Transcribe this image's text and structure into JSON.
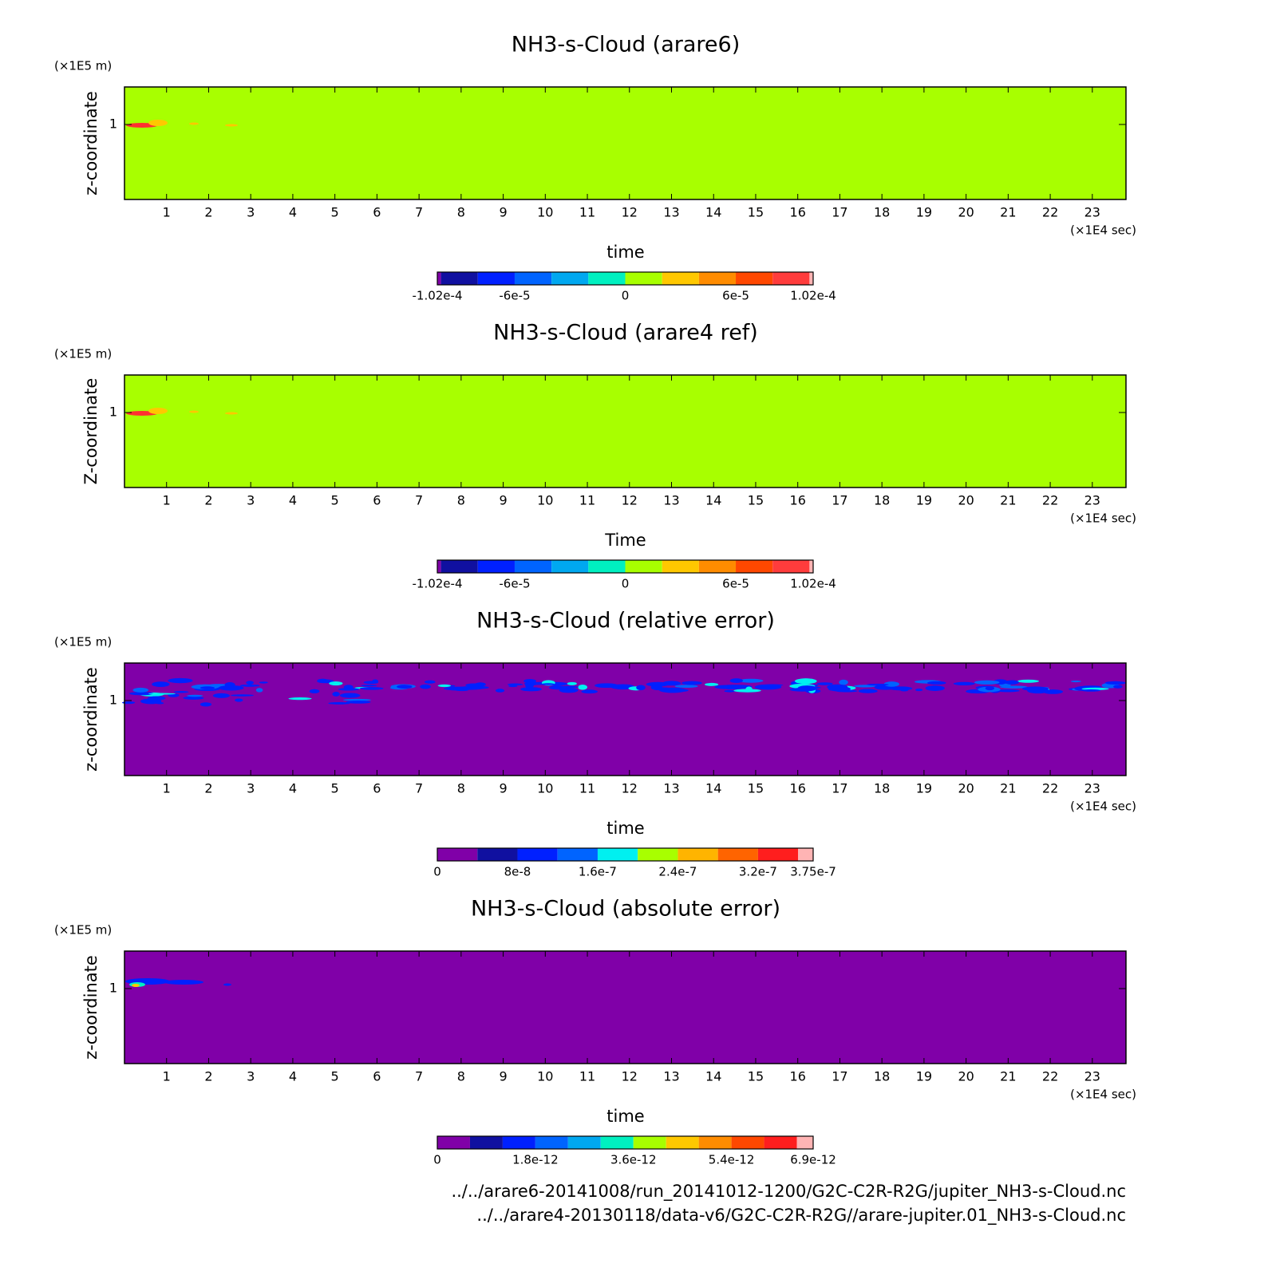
{
  "chart_data": [
    {
      "type": "contour",
      "title": "NH3-s-Cloud (arare6)",
      "xlabel": "time",
      "ylabel": "z-coordinate",
      "x_unit": "(×1E4 sec)",
      "y_unit": "(×1E5 m)",
      "xlim": [
        0,
        23.8
      ],
      "ylim": [
        0,
        1.5
      ],
      "xticks": [
        1,
        2,
        3,
        4,
        5,
        6,
        7,
        8,
        9,
        10,
        11,
        12,
        13,
        14,
        15,
        16,
        17,
        18,
        19,
        20,
        21,
        22,
        23
      ],
      "yticks": [
        1
      ],
      "fill_color": "#a8ff00",
      "colorbar": {
        "clim": [
          -0.000102,
          0.000102
        ],
        "levels": [
          -0.0001,
          -8e-05,
          -6e-05,
          -4e-05,
          -2e-05,
          0,
          2e-05,
          4e-05,
          6e-05,
          8e-05,
          0.0001
        ],
        "colors": [
          "#8000a8",
          "#1010a0",
          "#0020ff",
          "#0064ff",
          "#00a8f0",
          "#00f0c0",
          "#a8ff00",
          "#ffc800",
          "#ff8c00",
          "#ff4800",
          "#ff3c3c",
          "#ffb4b4"
        ],
        "ticks": [
          {
            "value": -0.000102,
            "label": "-1.02e-4"
          },
          {
            "value": -6e-05,
            "label": "-6e-5"
          },
          0,
          {
            "value": 6e-05,
            "label": "6e-5"
          },
          {
            "value": 0.000102,
            "label": "1.02e-4"
          }
        ]
      }
    },
    {
      "type": "contour",
      "title": "NH3-s-Cloud (arare4 ref)",
      "xlabel": "Time",
      "ylabel": "Z-coordinate",
      "x_unit": "(×1E4 sec)",
      "y_unit": "(×1E5 m)",
      "xlim": [
        0,
        23.8
      ],
      "ylim": [
        0,
        1.5
      ],
      "xticks": [
        1,
        2,
        3,
        4,
        5,
        6,
        7,
        8,
        9,
        10,
        11,
        12,
        13,
        14,
        15,
        16,
        17,
        18,
        19,
        20,
        21,
        22,
        23
      ],
      "yticks": [
        1
      ],
      "fill_color": "#a8ff00",
      "colorbar": {
        "clim": [
          -0.000102,
          0.000102
        ],
        "levels": [
          -0.0001,
          -8e-05,
          -6e-05,
          -4e-05,
          -2e-05,
          0,
          2e-05,
          4e-05,
          6e-05,
          8e-05,
          0.0001
        ],
        "colors": [
          "#8000a8",
          "#1010a0",
          "#0020ff",
          "#0064ff",
          "#00a8f0",
          "#00f0c0",
          "#a8ff00",
          "#ffc800",
          "#ff8c00",
          "#ff4800",
          "#ff3c3c",
          "#ffb4b4"
        ],
        "ticks": [
          {
            "value": -0.000102,
            "label": "-1.02e-4"
          },
          {
            "value": -6e-05,
            "label": "-6e-5"
          },
          0,
          {
            "value": 6e-05,
            "label": "6e-5"
          },
          {
            "value": 0.000102,
            "label": "1.02e-4"
          }
        ]
      }
    },
    {
      "type": "contour",
      "title": "NH3-s-Cloud (relative error)",
      "xlabel": "time",
      "ylabel": "z-coordinate",
      "x_unit": "(×1E4 sec)",
      "y_unit": "(×1E5 m)",
      "xlim": [
        0,
        23.8
      ],
      "ylim": [
        0,
        1.5
      ],
      "xticks": [
        1,
        2,
        3,
        4,
        5,
        6,
        7,
        8,
        9,
        10,
        11,
        12,
        13,
        14,
        15,
        16,
        17,
        18,
        19,
        20,
        21,
        22,
        23
      ],
      "yticks": [
        1
      ],
      "fill_color": "#8000a8",
      "colorbar": {
        "clim": [
          0,
          3.75e-07
        ],
        "levels": [
          4e-08,
          8e-08,
          1.2e-07,
          1.6e-07,
          2e-07,
          2.4e-07,
          2.8e-07,
          3.2e-07,
          3.6e-07
        ],
        "colors": [
          "#8000a8",
          "#1010a0",
          "#0020ff",
          "#0064ff",
          "#00f0f0",
          "#a8ff00",
          "#ffb400",
          "#ff6400",
          "#ff1e1e",
          "#ffb4b4"
        ],
        "ticks": [
          0,
          {
            "value": 8e-08,
            "label": "8e-8"
          },
          {
            "value": 1.6e-07,
            "label": "1.6e-7"
          },
          {
            "value": 2.4e-07,
            "label": "2.4e-7"
          },
          {
            "value": 3.2e-07,
            "label": "3.2e-7"
          },
          {
            "value": 3.75e-07,
            "label": "3.75e-7"
          }
        ]
      }
    },
    {
      "type": "contour",
      "title": "NH3-s-Cloud (absolute error)",
      "xlabel": "time",
      "ylabel": "z-coordinate",
      "x_unit": "(×1E4 sec)",
      "y_unit": "(×1E5 m)",
      "xlim": [
        0,
        23.8
      ],
      "ylim": [
        0,
        1.5
      ],
      "xticks": [
        1,
        2,
        3,
        4,
        5,
        6,
        7,
        8,
        9,
        10,
        11,
        12,
        13,
        14,
        15,
        16,
        17,
        18,
        19,
        20,
        21,
        22,
        23
      ],
      "yticks": [
        1
      ],
      "fill_color": "#8000a8",
      "colorbar": {
        "clim": [
          0,
          6.9e-12
        ],
        "levels": [
          6e-13,
          1.2e-12,
          1.8e-12,
          2.4e-12,
          3e-12,
          3.6e-12,
          4.2e-12,
          4.8e-12,
          5.4e-12,
          6e-12,
          6.6e-12
        ],
        "colors": [
          "#8000a8",
          "#1010a0",
          "#0020ff",
          "#0064ff",
          "#00a8f0",
          "#00f0c0",
          "#a8ff00",
          "#ffc800",
          "#ff8c00",
          "#ff4800",
          "#ff1e1e",
          "#ffb4b4"
        ],
        "ticks": [
          0,
          {
            "value": 1.8e-12,
            "label": "1.8e-12"
          },
          {
            "value": 3.6e-12,
            "label": "3.6e-12"
          },
          {
            "value": 5.4e-12,
            "label": "5.4e-12"
          },
          {
            "value": 6.9e-12,
            "label": "6.9e-12"
          }
        ]
      }
    }
  ],
  "footnotes": [
    "../../arare6-20141008/run_20141012-1200/G2C-C2R-R2G/jupiter_NH3-s-Cloud.nc",
    "../../arare4-20130118/data-v6/G2C-C2R-R2G//arare-jupiter.01_NH3-s-Cloud.nc"
  ]
}
